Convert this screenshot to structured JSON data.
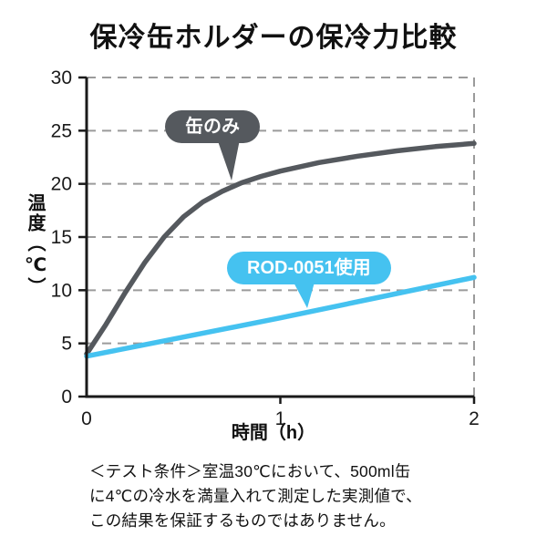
{
  "chart_data": {
    "type": "line",
    "title": "保冷缶ホルダーの保冷力比較",
    "xlabel": "時間（h）",
    "ylabel": "温度（℃）",
    "xlim": [
      0,
      2
    ],
    "ylim": [
      0,
      30
    ],
    "xticks": [
      0,
      1,
      2
    ],
    "yticks": [
      0,
      5,
      10,
      15,
      20,
      25,
      30
    ],
    "grid": "horizontal-dashed",
    "legend_position": "callout-bubbles",
    "series": [
      {
        "name": "缶のみ",
        "color": "#55595e",
        "points": [
          [
            0,
            4.0
          ],
          [
            0.1,
            6.8
          ],
          [
            0.2,
            9.8
          ],
          [
            0.3,
            12.6
          ],
          [
            0.4,
            15.0
          ],
          [
            0.5,
            16.9
          ],
          [
            0.6,
            18.3
          ],
          [
            0.7,
            19.3
          ],
          [
            0.8,
            20.1
          ],
          [
            0.9,
            20.7
          ],
          [
            1.0,
            21.2
          ],
          [
            1.2,
            22.0
          ],
          [
            1.4,
            22.6
          ],
          [
            1.6,
            23.1
          ],
          [
            1.8,
            23.5
          ],
          [
            2.0,
            23.8
          ]
        ]
      },
      {
        "name": "ROD-0051使用",
        "color": "#45c2f0",
        "points": [
          [
            0,
            3.8
          ],
          [
            0.5,
            5.6
          ],
          [
            1.0,
            7.4
          ],
          [
            1.5,
            9.3
          ],
          [
            2.0,
            11.2
          ]
        ]
      }
    ]
  },
  "colors": {
    "axis": "#1a1a1a",
    "grid": "#9b9b9b",
    "tick_text": "#1a1a1a"
  },
  "footer": {
    "lines": [
      "＜テスト条件＞室温30℃において、500ml缶",
      "に4℃の冷水を満量入れて測定した実測値で、",
      "この結果を保証するものではありません。"
    ]
  }
}
